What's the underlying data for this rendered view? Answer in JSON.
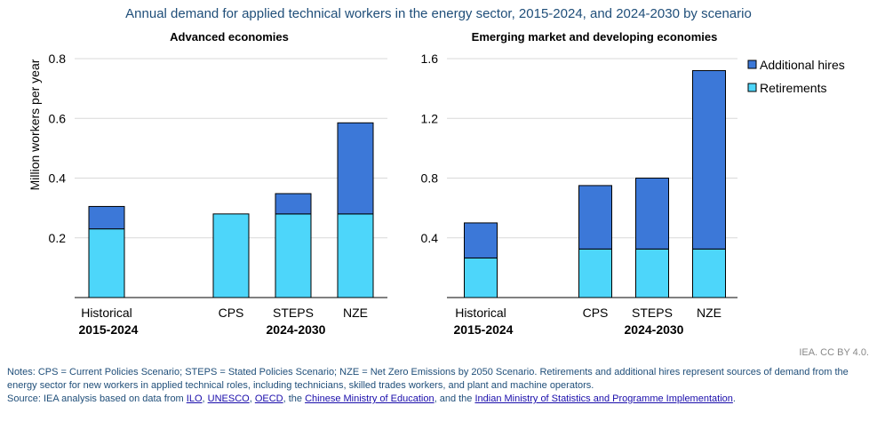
{
  "title": "Annual demand for applied technical workers in the energy sector, 2015-2024, and 2024-2030 by scenario",
  "credit": "IEA. CC BY 4.0.",
  "notes_line": "Notes: CPS = Current Policies Scenario; STEPS = Stated Policies Scenario; NZE = Net Zero Emissions by 2050 Scenario. Retirements and additional hires represent sources of demand from the energy sector for new workers in applied technical roles, including technicians, skilled trades workers, and plant and machine operators.",
  "source": {
    "prefix": "Source: IEA analysis based on data from ",
    "links": [
      "ILO",
      "UNESCO",
      "OECD",
      "Chinese Ministry of Education",
      "Indian Ministry of Statistics and Programme Implementation"
    ],
    "sep1": ", ",
    "sep2": ", ",
    "sep3": ", the ",
    "sep4": ", and the ",
    "suffix": "."
  },
  "colors": {
    "retirements": "#4dd6fa",
    "additional": "#3c78d8",
    "grid": "#d9d9d9"
  },
  "chart_data": [
    {
      "type": "bar",
      "stacked": true,
      "title": "Advanced economies",
      "ylabel": "Million workers per year",
      "ylim": [
        0,
        0.8
      ],
      "yticks": [
        0.2,
        0.4,
        0.6,
        0.8
      ],
      "ytick_labels": [
        "0.2",
        "0.4",
        "0.6",
        "0.8"
      ],
      "categories": [
        "Historical",
        "CPS",
        "STEPS",
        "NZE"
      ],
      "groups": [
        "2015-2024",
        "2024-2030"
      ],
      "series": [
        {
          "name": "Retirements",
          "values": [
            0.23,
            0.28,
            0.28,
            0.28
          ]
        },
        {
          "name": "Additional hires",
          "values": [
            0.075,
            0.0,
            0.068,
            0.305
          ]
        }
      ]
    },
    {
      "type": "bar",
      "stacked": true,
      "title": "Emerging market and developing economies",
      "ylim": [
        0,
        1.6
      ],
      "yticks": [
        0.4,
        0.8,
        1.2,
        1.6
      ],
      "ytick_labels": [
        "0.4",
        "0.8",
        "1.2",
        "1.6"
      ],
      "categories": [
        "Historical",
        "CPS",
        "STEPS",
        "NZE"
      ],
      "groups": [
        "2015-2024",
        "2024-2030"
      ],
      "series": [
        {
          "name": "Retirements",
          "values": [
            0.265,
            0.325,
            0.325,
            0.325
          ]
        },
        {
          "name": "Additional hires",
          "values": [
            0.235,
            0.425,
            0.475,
            1.195
          ]
        }
      ],
      "legend": {
        "position": "top-right",
        "entries": [
          "Additional hires",
          "Retirements"
        ]
      }
    }
  ]
}
